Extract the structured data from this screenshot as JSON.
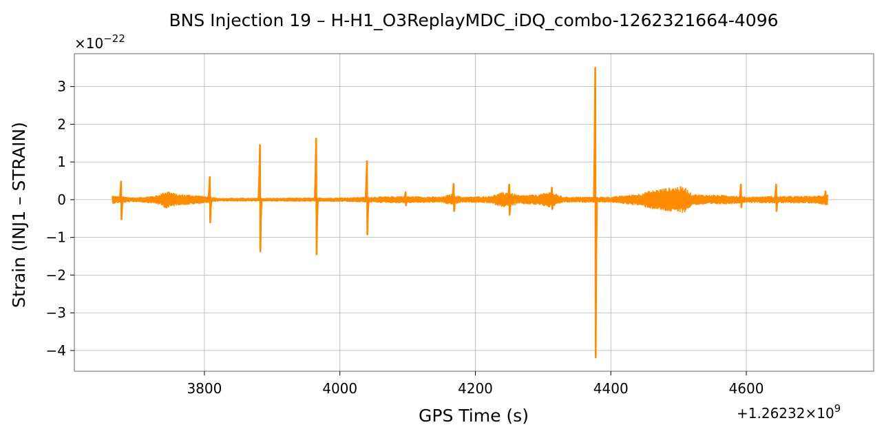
{
  "chart_data": {
    "type": "line",
    "title": "BNS Injection 19 – H-H1_O3ReplayMDC_iDQ_combo-1262321664-4096",
    "xlabel": "GPS Time (s)",
    "ylabel": "Strain (INJ1 – STRAIN)",
    "y_multiplier_label": "×10",
    "y_multiplier_exponent": "−22",
    "x_offset_label": "+1.26232×10",
    "x_offset_exponent": "9",
    "xlim": [
      3608,
      4788
    ],
    "ylim": [
      -4.55,
      3.87
    ],
    "xticks": [
      3800,
      4000,
      4200,
      4400,
      4600
    ],
    "xtick_labels": [
      "3800",
      "4000",
      "4200",
      "4400",
      "4600"
    ],
    "yticks": [
      3,
      2,
      1,
      0,
      -1,
      -2,
      -3,
      -4
    ],
    "ytick_labels": [
      "3",
      "2",
      "1",
      "0",
      "−1",
      "−2",
      "−3",
      "−4"
    ],
    "grid": true,
    "line_color": "#ff8c00",
    "x_range": [
      3664,
      4720
    ],
    "baseline_noise": 0.05,
    "envelope": [
      {
        "x": 3664,
        "amp": 0.12
      },
      {
        "x": 3670,
        "amp": 0.1
      },
      {
        "x": 3700,
        "amp": 0.06
      },
      {
        "x": 3730,
        "amp": 0.12
      },
      {
        "x": 3745,
        "amp": 0.25
      },
      {
        "x": 3760,
        "amp": 0.15
      },
      {
        "x": 3780,
        "amp": 0.14
      },
      {
        "x": 3800,
        "amp": 0.1
      },
      {
        "x": 3820,
        "amp": 0.05
      },
      {
        "x": 3900,
        "amp": 0.05
      },
      {
        "x": 4000,
        "amp": 0.06
      },
      {
        "x": 4090,
        "amp": 0.1
      },
      {
        "x": 4150,
        "amp": 0.08
      },
      {
        "x": 4165,
        "amp": 0.16
      },
      {
        "x": 4180,
        "amp": 0.08
      },
      {
        "x": 4220,
        "amp": 0.1
      },
      {
        "x": 4245,
        "amp": 0.22
      },
      {
        "x": 4265,
        "amp": 0.12
      },
      {
        "x": 4295,
        "amp": 0.15
      },
      {
        "x": 4310,
        "amp": 0.22
      },
      {
        "x": 4330,
        "amp": 0.08
      },
      {
        "x": 4400,
        "amp": 0.08
      },
      {
        "x": 4440,
        "amp": 0.16
      },
      {
        "x": 4460,
        "amp": 0.25
      },
      {
        "x": 4475,
        "amp": 0.3
      },
      {
        "x": 4500,
        "amp": 0.36
      },
      {
        "x": 4510,
        "amp": 0.34
      },
      {
        "x": 4520,
        "amp": 0.15
      },
      {
        "x": 4580,
        "amp": 0.12
      },
      {
        "x": 4600,
        "amp": 0.08
      },
      {
        "x": 4640,
        "amp": 0.1
      },
      {
        "x": 4700,
        "amp": 0.1
      },
      {
        "x": 4720,
        "amp": 0.15
      }
    ],
    "glitches": [
      {
        "x": 3677,
        "max": 0.48,
        "min": -0.52
      },
      {
        "x": 3808,
        "max": 0.6,
        "min": -0.6
      },
      {
        "x": 3882,
        "max": 1.45,
        "min": -1.37
      },
      {
        "x": 3965,
        "max": 1.62,
        "min": -1.45
      },
      {
        "x": 4040,
        "max": 1.02,
        "min": -0.92
      },
      {
        "x": 4097,
        "max": 0.2,
        "min": -0.15
      },
      {
        "x": 4168,
        "max": 0.42,
        "min": -0.3
      },
      {
        "x": 4250,
        "max": 0.4,
        "min": -0.4
      },
      {
        "x": 4313,
        "max": 0.32,
        "min": -0.25
      },
      {
        "x": 4377,
        "max": 3.5,
        "min": -4.18
      },
      {
        "x": 4592,
        "max": 0.4,
        "min": -0.2
      },
      {
        "x": 4644,
        "max": 0.4,
        "min": -0.3
      },
      {
        "x": 4717,
        "max": 0.22,
        "min": -0.12
      }
    ]
  }
}
